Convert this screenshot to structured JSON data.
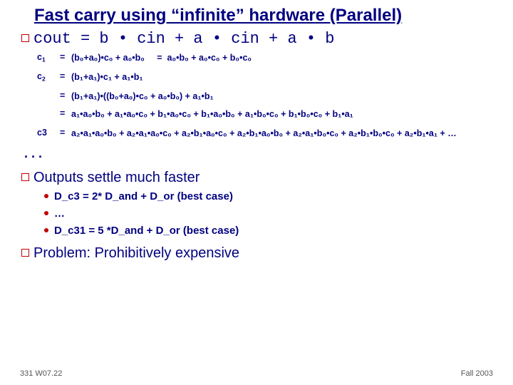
{
  "title": "Fast carry using “infinite” hardware (Parallel)",
  "mainEq": "cout = b • cin + a • cin + a • b",
  "rows": {
    "r1": {
      "lhs": "c",
      "sub": "1",
      "rhs": "(b₀+a₀)•c₀ + a₀•b₀     =  a₀•b₀ + a₀•c₀ + b₀•c₀"
    },
    "r2": {
      "lhs": "c",
      "sub": "2",
      "rhs": "(b₁+a₁)•c₁ + a₁•b₁"
    },
    "r3": {
      "rhs": "(b₁+a₁)•((b₀+a₀)•c₀ + a₀•b₀) + a₁•b₁"
    },
    "r4": {
      "rhs": "a₁•a₀•b₀ + a₁•a₀•c₀ + b₁•a₀•c₀ + b₁•a₀•b₀ + a₁•b₀•c₀ + b₁•b₀•c₀ + b₁•a₁"
    },
    "r5": {
      "lhs": "c3",
      "rhs": "a₂•a₁•a₀•b₀ + a₂•a₁•a₀•c₀ + a₂•b₁•a₀•c₀ + a₂•b₁•a₀•b₀ + a₂•a₁•b₀•c₀ + a₂•b₁•b₀•c₀ + a₂•b₁•a₁ + …"
    }
  },
  "ellipsis": ". . .",
  "outputs": "Outputs settle much faster",
  "sub": {
    "a": "D_c3 = 2* D_and + D_or (best case)",
    "b": "…",
    "c": "D_c31 = 5 *D_and + D_or (best case)"
  },
  "problem": "Problem: Prohibitively expensive",
  "footer": {
    "left": "331 W07.22",
    "right": "Fall 2003"
  }
}
